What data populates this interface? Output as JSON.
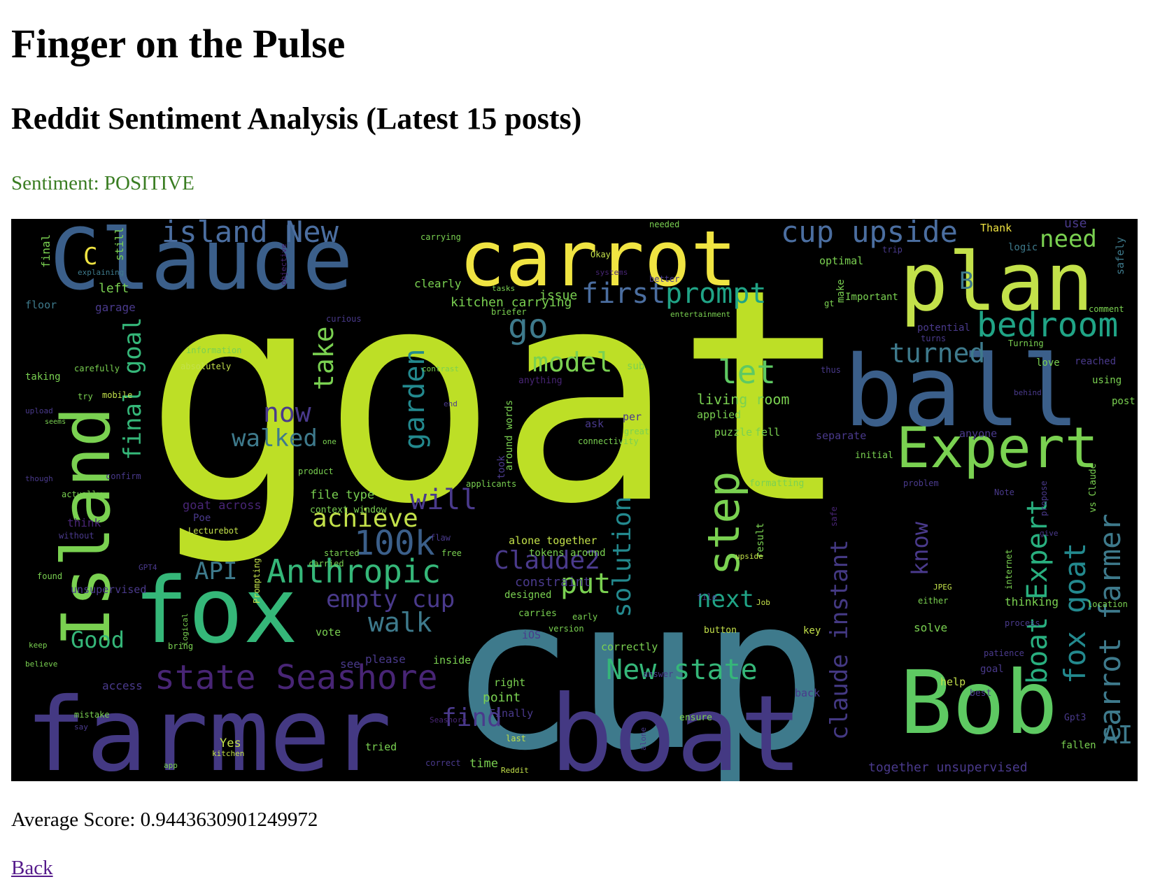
{
  "page": {
    "title": "Finger on the Pulse",
    "subtitle": "Reddit Sentiment Analysis (Latest 15 posts)",
    "sentiment_label": "Sentiment: ",
    "sentiment_value": "POSITIVE",
    "sentiment_color": "#3a7d22",
    "average_score_label": "Average Score: ",
    "average_score_value": "0.9443630901249972",
    "back_link": "Back",
    "link_color": "#551a8b"
  },
  "word_cloud": {
    "background": "#000000",
    "palette": "viridis",
    "words": [
      "goat",
      "cup",
      "farmer",
      "boat",
      "Claude",
      "carrot",
      "plan",
      "ball",
      "fox",
      "Island",
      "Bob",
      "Expert",
      "island New",
      "cup upside",
      "need",
      "bedroom",
      "step",
      "state Seashore",
      "Anthropic",
      "first",
      "prompt",
      "go",
      "model",
      "let",
      "turned",
      "take",
      "final goal",
      "garden",
      "now",
      "walked",
      "achieve",
      "100k",
      "will",
      "Claude2",
      "API",
      "put",
      "solution",
      "empty cup",
      "walk",
      "Good",
      "New state",
      "find",
      "boat Expert",
      "fox goat",
      "carrot farmer",
      "claude instant",
      "AI",
      "next",
      "know",
      "living room",
      "kitchen carrying",
      "issue",
      "left",
      "still",
      "final",
      "floor",
      "garage",
      "Thank",
      "use",
      "logic",
      "safely",
      "optimal",
      "Okay",
      "clearly",
      "carrying",
      "explaining",
      "needed",
      "trip",
      "better",
      "make",
      "Important",
      "comment",
      "briefer",
      "curious",
      "entertainment",
      "potential",
      "turns",
      "Turning",
      "love",
      "reached",
      "using",
      "information",
      "absolutely",
      "carefully",
      "taking",
      "try",
      "mobile",
      "contrast",
      "sub",
      "thus",
      "behind",
      "post",
      "upload",
      "seems",
      "end",
      "applied",
      "puzzle",
      "fell",
      "separate",
      "anyone",
      "initial",
      "one",
      "connectivity",
      "great",
      "ask",
      "per",
      "product",
      "confirm",
      "though",
      "applicants",
      "formatting",
      "problem",
      "Note",
      "propose",
      "actually",
      "file type",
      "context window",
      "goat across",
      "Poe",
      "Lecturebot",
      "think",
      "without",
      "flaw",
      "alone together",
      "tokens around",
      "upside",
      "result",
      "give",
      "vs Claude",
      "started",
      "carried",
      "free",
      "GPT4",
      "found",
      "unsupervised",
      "Prompting",
      "constraint",
      "designed",
      "JPEG",
      "Job",
      "internet",
      "thinking",
      "location",
      "either",
      "file",
      "carries",
      "early",
      "version",
      "button",
      "key",
      "solve",
      "process",
      "iOS",
      "correctly",
      "vote",
      "keep",
      "bring",
      "logical",
      "believe",
      "see",
      "please",
      "inside",
      "answer",
      "patience",
      "goal",
      "access",
      "right",
      "help",
      "point",
      "back",
      "best",
      "mistake",
      "Finally",
      "ensure",
      "Gpt3",
      "say",
      "Seashore",
      "alone",
      "fallen",
      "Yes",
      "tried",
      "last",
      "kitchen",
      "app",
      "correct",
      "time",
      "Reddit",
      "together unsupervised",
      "C",
      "B",
      "systems",
      "objective",
      "anything",
      "tasks",
      "around words",
      "took",
      "safe",
      "gt"
    ]
  }
}
